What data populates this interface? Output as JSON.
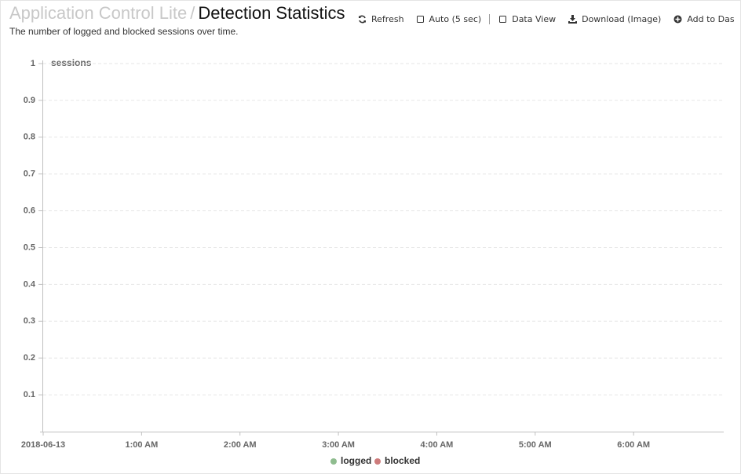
{
  "header": {
    "breadcrumb": [
      "Application Control Lite",
      "Detection Statistics"
    ],
    "separator": "/"
  },
  "toolbar": [
    "Refresh",
    "Auto (5 sec)",
    "Data View",
    "Download (Image)",
    "Add to Das"
  ],
  "chart_data": {
    "type": "line",
    "subtitle": "The number of logged and blocked sessions over time.",
    "y_label": "sessions",
    "xlim": [
      0,
      6.9
    ],
    "xticks": [
      {
        "value": 0,
        "label": "2018-06-13"
      },
      {
        "value": 1,
        "label": "1:00 AM"
      },
      {
        "value": 2,
        "label": "2:00 AM"
      },
      {
        "value": 3,
        "label": "3:00 AM"
      },
      {
        "value": 4,
        "label": "4:00 AM"
      },
      {
        "value": 5,
        "label": "5:00 AM"
      },
      {
        "value": 6,
        "label": "6:00 AM"
      }
    ],
    "ylim": [
      0,
      1
    ],
    "yticks": [
      0.1,
      0.2,
      0.3,
      0.4,
      0.5,
      0.6,
      0.7,
      0.8,
      0.9,
      1
    ],
    "grid": true,
    "legend": "bottom",
    "x": [],
    "series": [
      {
        "name": "logged",
        "color": "#8fbc8f",
        "values": []
      },
      {
        "name": "blocked",
        "color": "#cd7b7b",
        "values": []
      }
    ]
  }
}
